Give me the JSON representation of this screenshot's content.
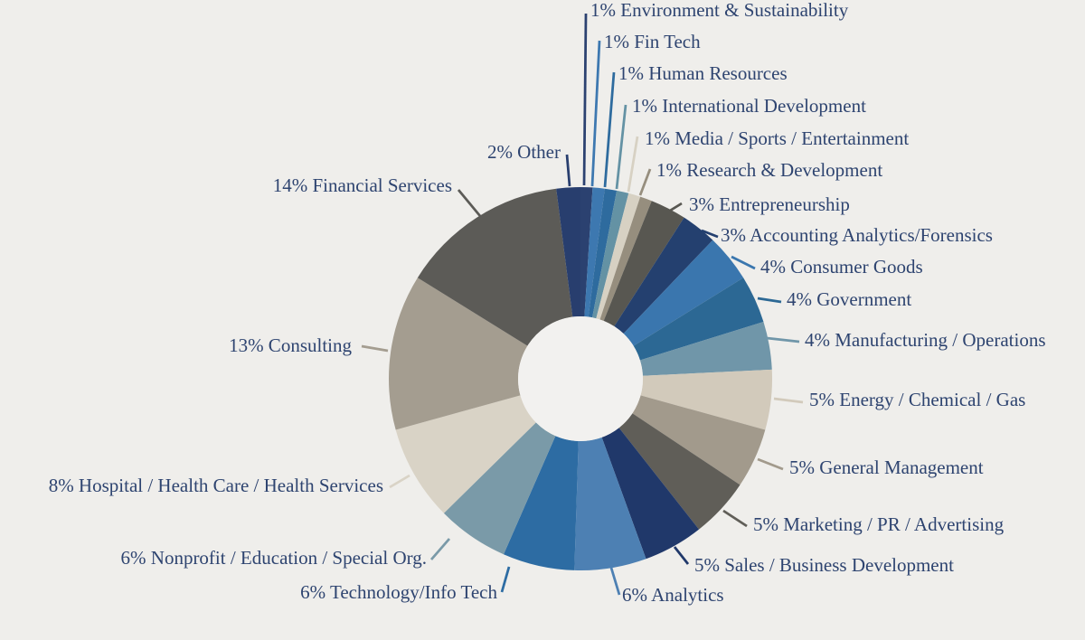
{
  "background": "#EFEEEB",
  "chart_data": {
    "type": "donut",
    "title": "",
    "unit": "percent",
    "total": 99,
    "start_angle_deg": 0,
    "direction": "clockwise",
    "label_format": "{value}% {name}",
    "text_color": "#2E4470",
    "hole_color": "#F2F1EF",
    "legend_position": "around-slices-with-leader-lines",
    "segments": [
      {
        "name": "Environment & Sustainability",
        "value": 1,
        "color": "#2B4170"
      },
      {
        "name": "Fin Tech",
        "value": 1,
        "color": "#3D78B0"
      },
      {
        "name": "Human Resources",
        "value": 1,
        "color": "#2E6B9E"
      },
      {
        "name": "International Development",
        "value": 1,
        "color": "#6492A4"
      },
      {
        "name": "Media / Sports / Entertainment",
        "value": 1,
        "color": "#D7D1C3"
      },
      {
        "name": "Research & Development",
        "value": 1,
        "color": "#968E7E"
      },
      {
        "name": "Entrepreneurship",
        "value": 3,
        "color": "#585751"
      },
      {
        "name": "Accounting Analytics/Forensics",
        "value": 3,
        "color": "#24406F"
      },
      {
        "name": "Consumer Goods",
        "value": 4,
        "color": "#3A76AE"
      },
      {
        "name": "Government",
        "value": 4,
        "color": "#2C6894"
      },
      {
        "name": "Manufacturing / Operations",
        "value": 4,
        "color": "#7096A9"
      },
      {
        "name": "Energy / Chemical / Gas",
        "value": 5,
        "color": "#D2CABB"
      },
      {
        "name": "General Management",
        "value": 5,
        "color": "#A29A8C"
      },
      {
        "name": "Marketing / PR / Advertising",
        "value": 5,
        "color": "#605E58"
      },
      {
        "name": "Sales / Business Development",
        "value": 5,
        "color": "#20386A"
      },
      {
        "name": "Analytics",
        "value": 6,
        "color": "#4D80B3"
      },
      {
        "name": "Technology/Info Tech",
        "value": 6,
        "color": "#2D6CA3"
      },
      {
        "name": "Nonprofit / Education / Special Org.",
        "value": 6,
        "color": "#7A9AA8"
      },
      {
        "name": "Hospital / Health Care / Health Services",
        "value": 8,
        "color": "#D9D3C6"
      },
      {
        "name": "Consulting",
        "value": 13,
        "color": "#A49D90"
      },
      {
        "name": "Financial Services",
        "value": 14,
        "color": "#5C5B57"
      },
      {
        "name": "Other",
        "value": 2,
        "color": "#283E6E"
      }
    ]
  }
}
